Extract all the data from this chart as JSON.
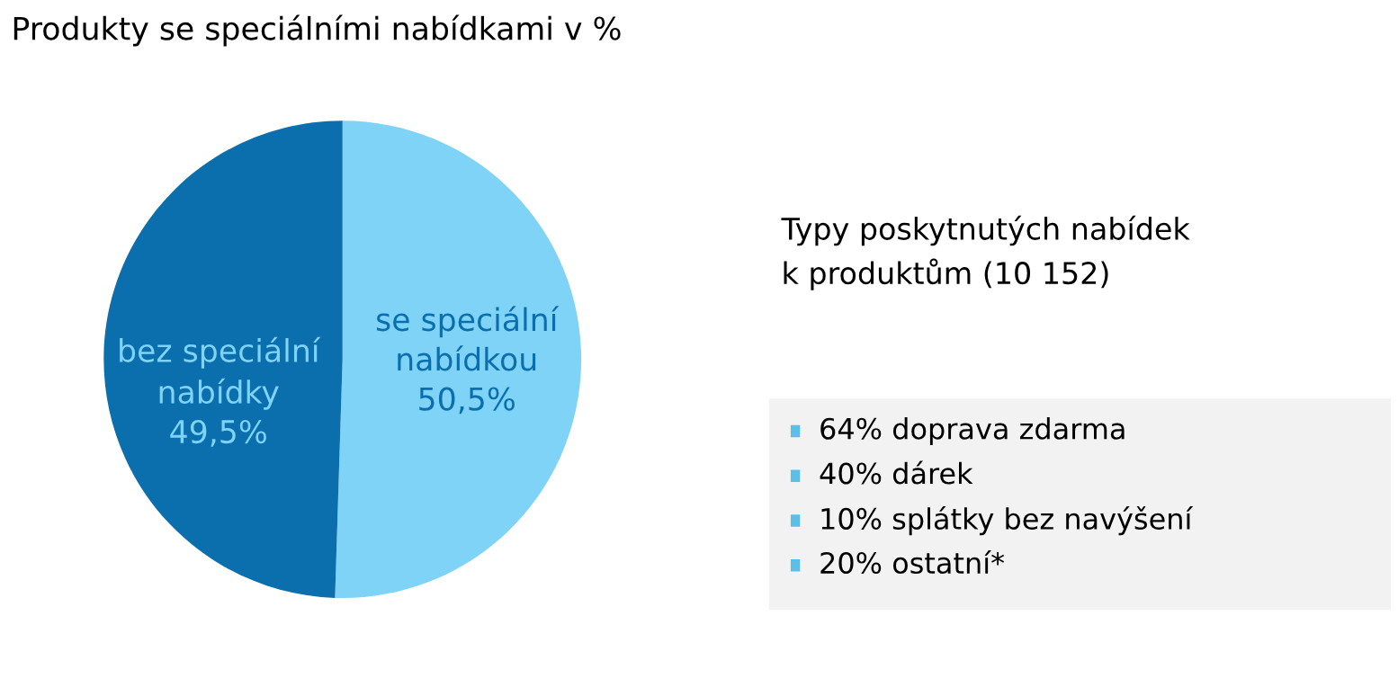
{
  "chart_data": [
    {
      "type": "pie",
      "title": "Produkty se speciálními nabídkami v %",
      "categories": [
        "se speciální\nnabídkou",
        "bez speciální\nnabídky"
      ],
      "values": [
        50.5,
        49.5
      ],
      "value_labels": [
        "50,5%",
        "49,5%"
      ],
      "colors": [
        "#7fd3f7",
        "#0b6fae"
      ]
    },
    {
      "type": "other",
      "title": "Typy poskytnutých nabídek\nk produktům (10 152)",
      "annotations": [
        "64% doprava zdarma",
        "40% dárek",
        "10% splátky bez navýšení",
        "20% ostatní*"
      ]
    }
  ]
}
